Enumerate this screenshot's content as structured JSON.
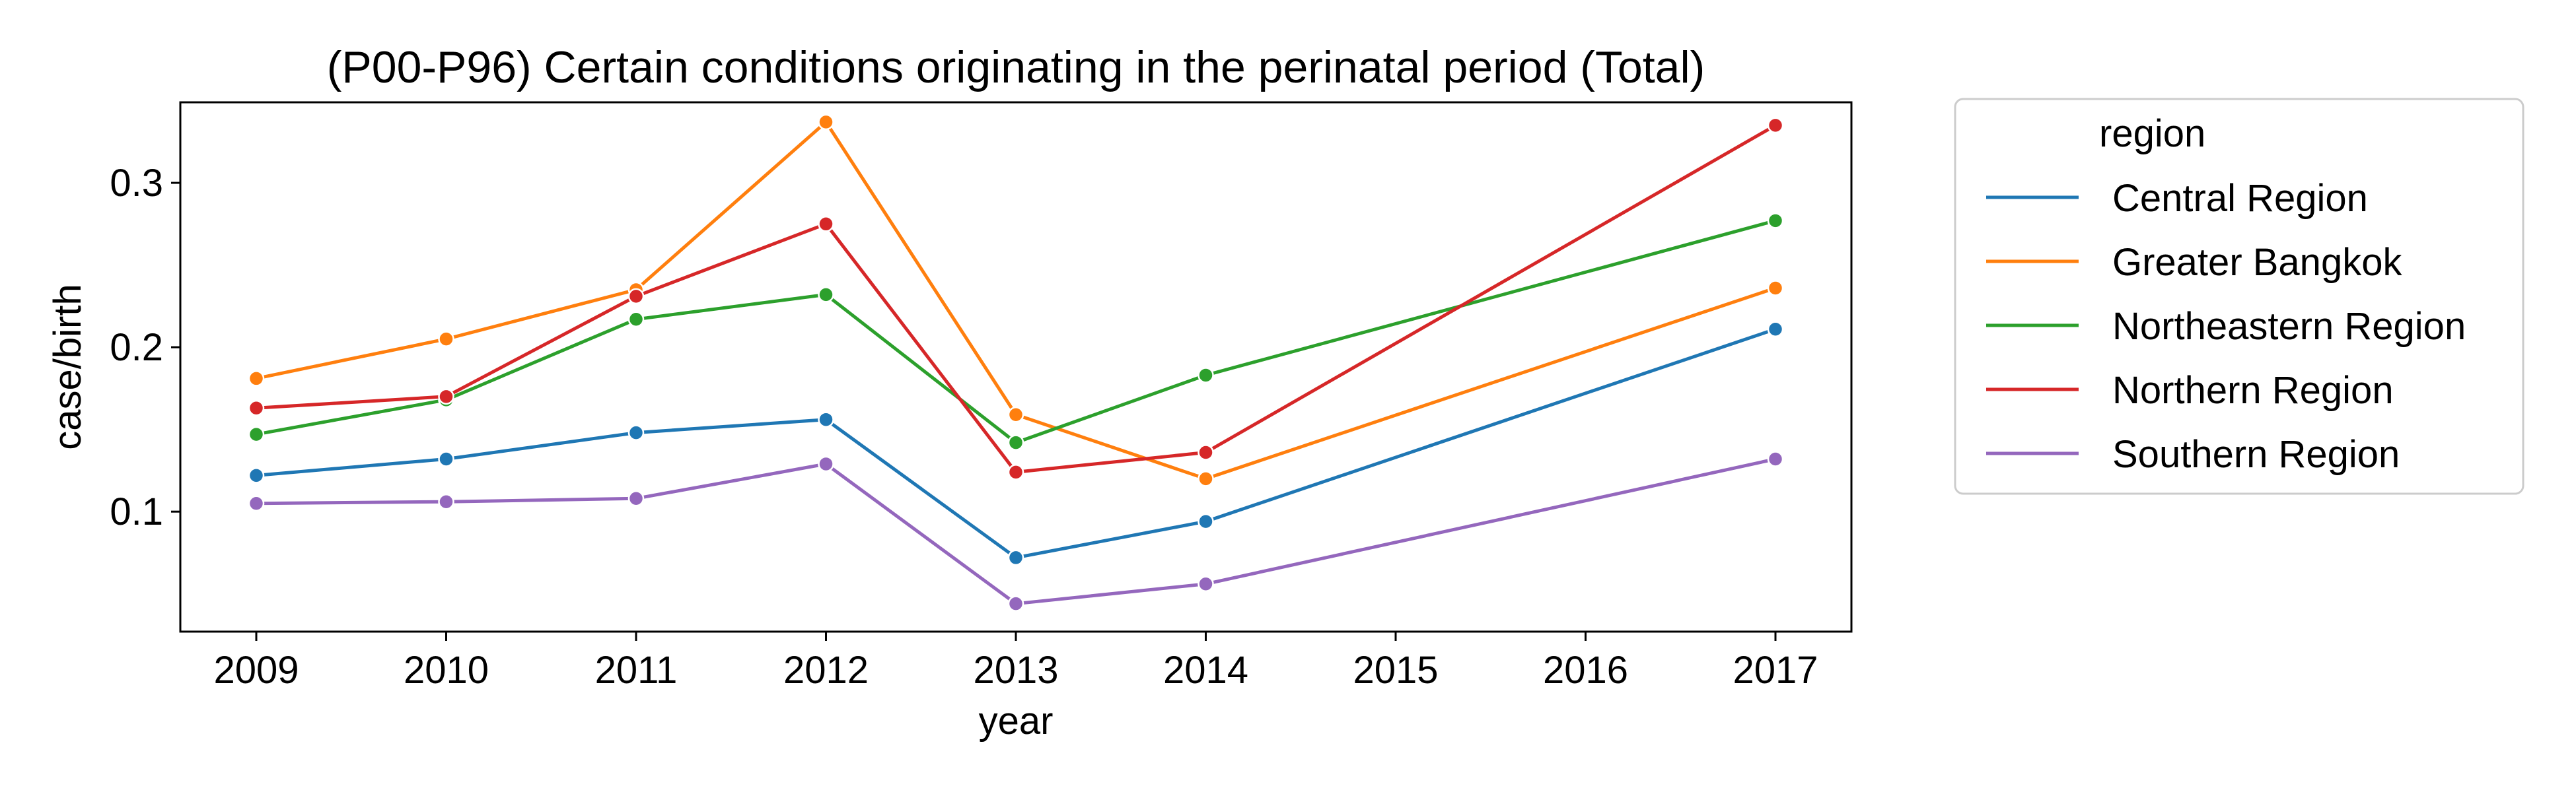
{
  "chart_data": {
    "type": "line",
    "title": "(P00-P96) Certain conditions originating in the perinatal period (Total)",
    "xlabel": "year",
    "ylabel": "case/birth",
    "x": [
      2009,
      2010,
      2011,
      2012,
      2013,
      2014,
      2017
    ],
    "x_ticks": [
      "2009",
      "2010",
      "2011",
      "2012",
      "2013",
      "2014",
      "2015",
      "2016",
      "2017"
    ],
    "y_ticks": [
      "0.1",
      "0.2",
      "0.3"
    ],
    "xlim": [
      2008.6,
      2017.4
    ],
    "ylim": [
      0.027,
      0.349
    ],
    "grid": false,
    "legend_position": "outside-right",
    "legend_title": "region",
    "series": [
      {
        "name": "Central Region",
        "color": "#1f77b4",
        "values": [
          0.122,
          0.132,
          0.148,
          0.156,
          0.072,
          0.094,
          0.211
        ]
      },
      {
        "name": "Greater Bangkok",
        "color": "#ff7f0e",
        "values": [
          0.181,
          0.205,
          0.235,
          0.337,
          0.159,
          0.12,
          0.236
        ]
      },
      {
        "name": "Northeastern Region",
        "color": "#2ca02c",
        "values": [
          0.147,
          0.168,
          0.217,
          0.232,
          0.142,
          0.183,
          0.277
        ]
      },
      {
        "name": "Northern Region",
        "color": "#d62728",
        "values": [
          0.163,
          0.17,
          0.231,
          0.275,
          0.124,
          0.136,
          0.335
        ]
      },
      {
        "name": "Southern Region",
        "color": "#9467bd",
        "values": [
          0.105,
          0.106,
          0.108,
          0.129,
          0.044,
          0.056,
          0.132
        ]
      }
    ]
  }
}
